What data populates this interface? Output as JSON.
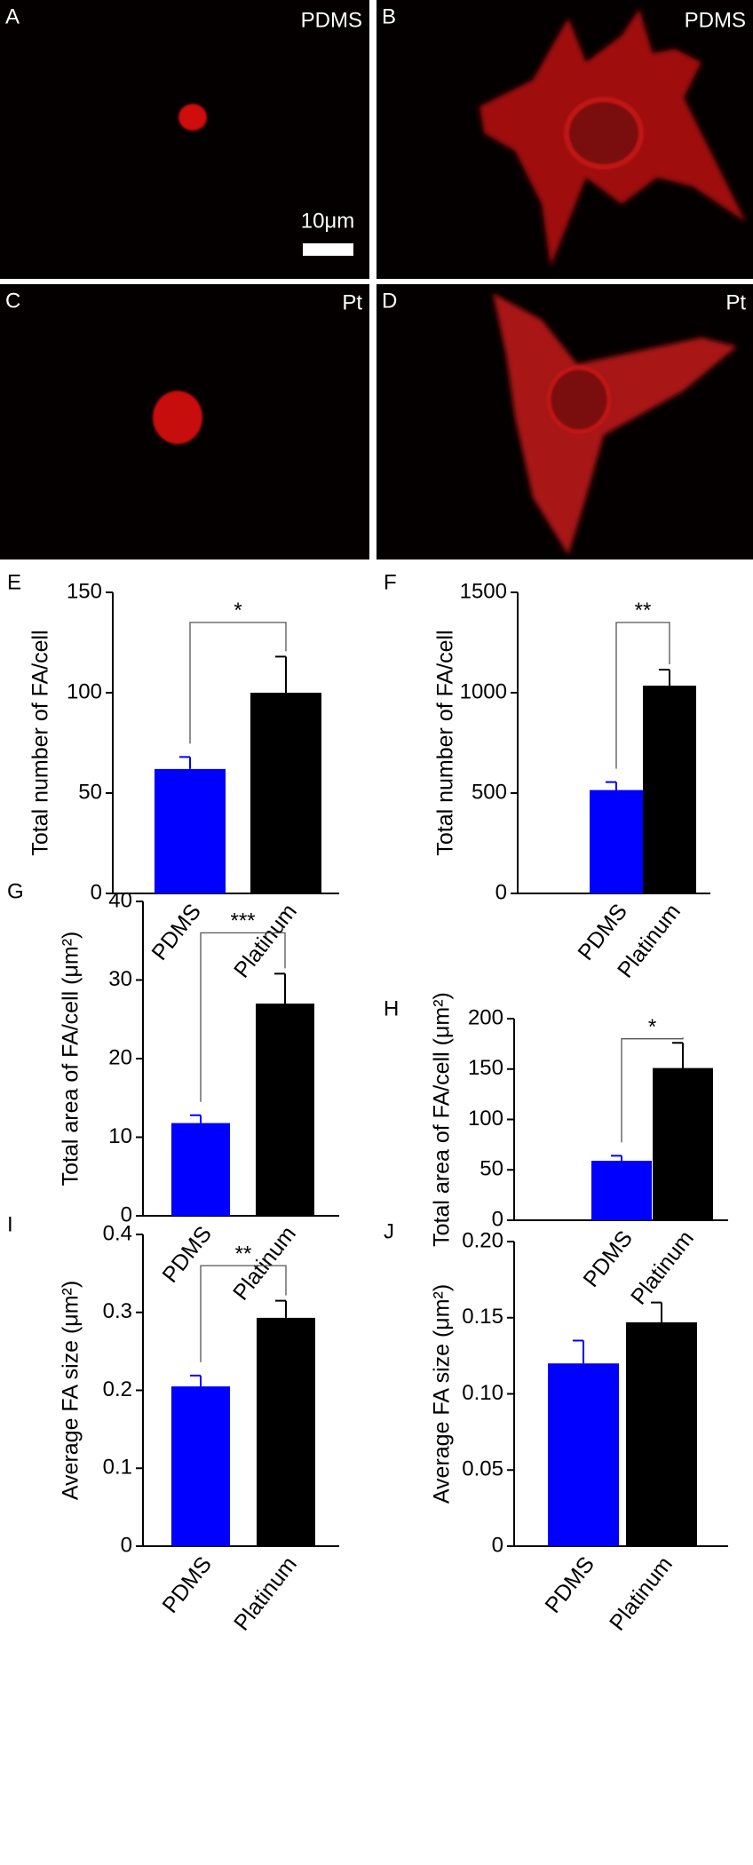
{
  "images": [
    {
      "panel": "A",
      "label": "PDMS"
    },
    {
      "panel": "B",
      "label": "PDMS"
    },
    {
      "panel": "C",
      "label": "Pt"
    },
    {
      "panel": "D",
      "label": "Pt"
    }
  ],
  "scale_bar": "10μm",
  "chart_data": [
    {
      "type": "bar",
      "panel": "E",
      "y_label": "Total number of FA/cell",
      "categories": [
        "PDMS",
        "Platinum"
      ],
      "values": [
        62,
        100
      ],
      "errors": [
        6,
        18
      ],
      "colors": [
        "#0000ff",
        "#000000"
      ],
      "ylim": [
        0,
        150
      ],
      "yticks": [
        0,
        50,
        100,
        150
      ],
      "significance": "*"
    },
    {
      "type": "bar",
      "panel": "F",
      "y_label": "Total number of FA/cell",
      "categories": [
        "PDMS",
        "Platinum"
      ],
      "values": [
        515,
        1035
      ],
      "errors": [
        40,
        80
      ],
      "colors": [
        "#0000ff",
        "#000000"
      ],
      "ylim": [
        0,
        1500
      ],
      "yticks": [
        0,
        500,
        1000,
        1500
      ],
      "significance": "**"
    },
    {
      "type": "bar",
      "panel": "G",
      "y_label": "Total area of FA/cell (μm²)",
      "categories": [
        "PDMS",
        "Platinum"
      ],
      "values": [
        11.8,
        27
      ],
      "errors": [
        1,
        3.8
      ],
      "colors": [
        "#0000ff",
        "#000000"
      ],
      "ylim": [
        0,
        40
      ],
      "yticks": [
        0,
        10,
        20,
        30,
        40
      ],
      "significance": "***"
    },
    {
      "type": "bar",
      "panel": "H",
      "y_label": "Total area of FA/cell (μm²)",
      "categories": [
        "PDMS",
        "Platinum"
      ],
      "values": [
        59,
        151
      ],
      "errors": [
        5,
        25
      ],
      "colors": [
        "#0000ff",
        "#000000"
      ],
      "ylim": [
        0,
        200
      ],
      "yticks": [
        0,
        50,
        100,
        150,
        200
      ],
      "significance": "*"
    },
    {
      "type": "bar",
      "panel": "I",
      "y_label": "Average FA size (μm²)",
      "categories": [
        "PDMS",
        "Platinum"
      ],
      "values": [
        0.205,
        0.293
      ],
      "errors": [
        0.014,
        0.022
      ],
      "colors": [
        "#0000ff",
        "#000000"
      ],
      "ylim": [
        0,
        0.4
      ],
      "yticks": [
        0,
        0.1,
        0.2,
        0.3,
        0.4
      ],
      "significance": "**"
    },
    {
      "type": "bar",
      "panel": "J",
      "y_label": "Average FA size (μm²)",
      "categories": [
        "PDMS",
        "Platinum"
      ],
      "values": [
        0.12,
        0.147
      ],
      "errors": [
        0.015,
        0.013
      ],
      "colors": [
        "#0000ff",
        "#000000"
      ],
      "ylim": [
        0,
        0.2
      ],
      "yticks": [
        0,
        {
          "value": 0.05,
          "label": "0.05"
        },
        {
          "value": 0.1,
          "label": "0.10"
        },
        0.15,
        {
          "value": 0.2,
          "label": "0.20"
        }
      ]
    }
  ]
}
